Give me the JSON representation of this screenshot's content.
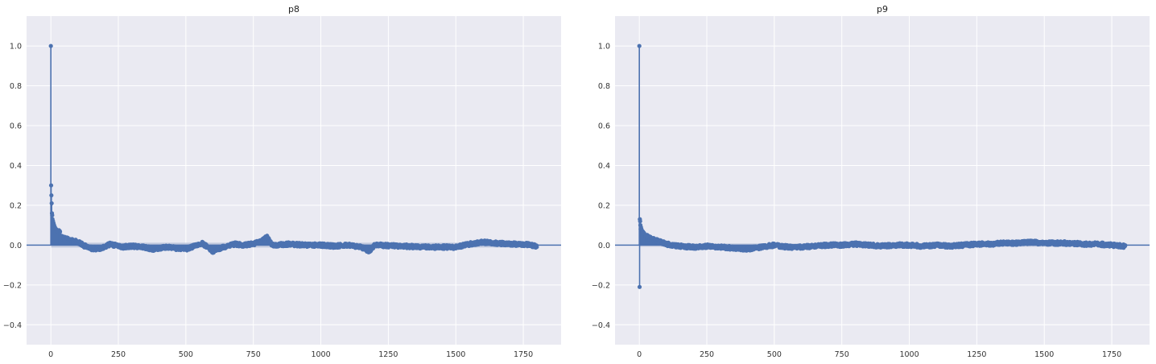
{
  "chart_data": [
    {
      "type": "stem",
      "title": "p8",
      "xlabel": "",
      "ylabel": "",
      "xlim": [
        -90,
        1890
      ],
      "ylim": [
        -0.5,
        1.15
      ],
      "xticks": [
        0,
        250,
        500,
        750,
        1000,
        1250,
        1500,
        1750
      ],
      "yticks": [
        -0.4,
        -0.2,
        0.0,
        0.2,
        0.4,
        0.6,
        0.8,
        1.0
      ],
      "xtick_labels": [
        "0",
        "250",
        "500",
        "750",
        "1000",
        "1250",
        "1500",
        "1750"
      ],
      "ytick_labels": [
        "−0.4",
        "−0.2",
        "0.0",
        "0.2",
        "0.4",
        "0.6",
        "0.8",
        "1.0"
      ],
      "grid": true,
      "n_lags": 1800,
      "confidence_band": 0.012,
      "spikes": [
        [
          0,
          1.0
        ],
        [
          1,
          0.3
        ],
        [
          2,
          0.25
        ],
        [
          3,
          0.21
        ],
        [
          4,
          0.16
        ],
        [
          5,
          0.15
        ],
        [
          6,
          0.13
        ],
        [
          8,
          0.12
        ],
        [
          10,
          0.11
        ],
        [
          12,
          0.1
        ],
        [
          15,
          0.09
        ],
        [
          20,
          0.08
        ],
        [
          25,
          0.07
        ],
        [
          30,
          0.075
        ]
      ],
      "curve": [
        [
          35,
          0.04
        ],
        [
          60,
          0.03
        ],
        [
          100,
          0.015
        ],
        [
          140,
          -0.015
        ],
        [
          180,
          -0.02
        ],
        [
          220,
          0.005
        ],
        [
          260,
          -0.01
        ],
        [
          300,
          -0.005
        ],
        [
          340,
          -0.01
        ],
        [
          380,
          -0.02
        ],
        [
          420,
          -0.01
        ],
        [
          460,
          -0.015
        ],
        [
          500,
          -0.02
        ],
        [
          540,
          0.0
        ],
        [
          560,
          0.01
        ],
        [
          600,
          -0.03
        ],
        [
          640,
          -0.01
        ],
        [
          680,
          0.005
        ],
        [
          720,
          0.0
        ],
        [
          760,
          0.01
        ],
        [
          780,
          0.02
        ],
        [
          800,
          0.04
        ],
        [
          820,
          0.0
        ],
        [
          880,
          0.005
        ],
        [
          950,
          0.0
        ],
        [
          1000,
          0.0
        ],
        [
          1050,
          -0.005
        ],
        [
          1100,
          0.0
        ],
        [
          1150,
          -0.01
        ],
        [
          1180,
          -0.03
        ],
        [
          1200,
          0.0
        ],
        [
          1300,
          -0.005
        ],
        [
          1400,
          -0.01
        ],
        [
          1500,
          -0.01
        ],
        [
          1550,
          0.005
        ],
        [
          1600,
          0.015
        ],
        [
          1650,
          0.01
        ],
        [
          1700,
          0.005
        ],
        [
          1750,
          0.005
        ],
        [
          1800,
          -0.005
        ]
      ],
      "color": "#4c72b0",
      "band_color": "#b3bed7"
    },
    {
      "type": "stem",
      "title": "p9",
      "xlabel": "",
      "ylabel": "",
      "xlim": [
        -90,
        1890
      ],
      "ylim": [
        -0.5,
        1.15
      ],
      "xticks": [
        0,
        250,
        500,
        750,
        1000,
        1250,
        1500,
        1750
      ],
      "yticks": [
        -0.4,
        -0.2,
        0.0,
        0.2,
        0.4,
        0.6,
        0.8,
        1.0
      ],
      "xtick_labels": [
        "0",
        "250",
        "500",
        "750",
        "1000",
        "1250",
        "1500",
        "1750"
      ],
      "ytick_labels": [
        "−0.4",
        "−0.2",
        "0.0",
        "0.2",
        "0.4",
        "0.6",
        "0.8",
        "1.0"
      ],
      "grid": true,
      "n_lags": 1800,
      "confidence_band": 0.008,
      "spikes": [
        [
          0,
          1.0
        ],
        [
          1,
          -0.21
        ],
        [
          2,
          0.13
        ],
        [
          3,
          0.12
        ],
        [
          4,
          0.1
        ],
        [
          6,
          0.09
        ],
        [
          8,
          0.08
        ],
        [
          12,
          0.07
        ],
        [
          18,
          0.06
        ],
        [
          25,
          0.05
        ]
      ],
      "curve": [
        [
          30,
          0.04
        ],
        [
          60,
          0.025
        ],
        [
          100,
          0.005
        ],
        [
          150,
          -0.005
        ],
        [
          200,
          -0.01
        ],
        [
          250,
          -0.005
        ],
        [
          300,
          -0.01
        ],
        [
          350,
          -0.015
        ],
        [
          400,
          -0.02
        ],
        [
          450,
          -0.01
        ],
        [
          500,
          0.0
        ],
        [
          550,
          -0.01
        ],
        [
          600,
          -0.01
        ],
        [
          650,
          -0.005
        ],
        [
          700,
          0.0
        ],
        [
          750,
          0.0
        ],
        [
          800,
          0.005
        ],
        [
          850,
          0.0
        ],
        [
          900,
          -0.005
        ],
        [
          950,
          0.0
        ],
        [
          1000,
          0.0
        ],
        [
          1050,
          -0.005
        ],
        [
          1100,
          0.0
        ],
        [
          1150,
          -0.005
        ],
        [
          1200,
          0.0
        ],
        [
          1250,
          0.005
        ],
        [
          1300,
          0.005
        ],
        [
          1350,
          0.01
        ],
        [
          1400,
          0.01
        ],
        [
          1450,
          0.015
        ],
        [
          1500,
          0.01
        ],
        [
          1550,
          0.01
        ],
        [
          1600,
          0.01
        ],
        [
          1650,
          0.005
        ],
        [
          1700,
          0.005
        ],
        [
          1750,
          0.0
        ],
        [
          1800,
          -0.005
        ]
      ],
      "color": "#4c72b0",
      "band_color": "#b3bed7"
    }
  ]
}
